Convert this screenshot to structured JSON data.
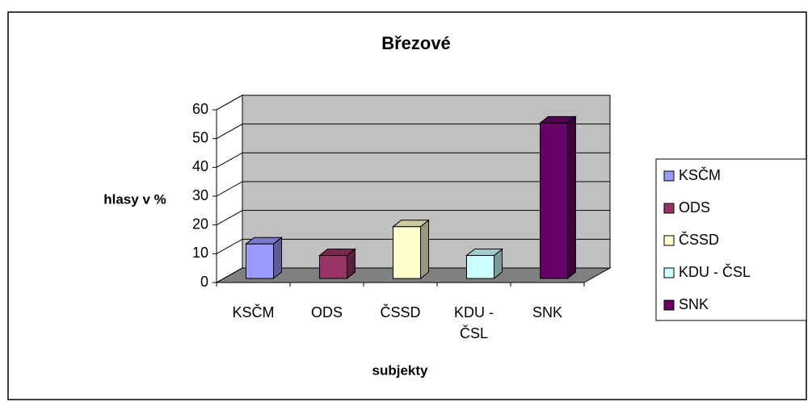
{
  "chart_data": {
    "type": "bar3d",
    "title": "Březové",
    "categories": [
      "KSČM",
      "ODS",
      "ČSSD",
      "KDU - ČSL",
      "SNK"
    ],
    "values": [
      12,
      8,
      18,
      8,
      54
    ],
    "colors": [
      "#9999ff",
      "#993366",
      "#ffffcc",
      "#ccffff",
      "#660066"
    ],
    "ylabel": "hlasy v %",
    "xlabel": "subjekty",
    "ylim": [
      0,
      60
    ],
    "yticks": [
      0,
      10,
      20,
      30,
      40,
      50,
      60
    ],
    "grid": true,
    "legend": "right"
  }
}
